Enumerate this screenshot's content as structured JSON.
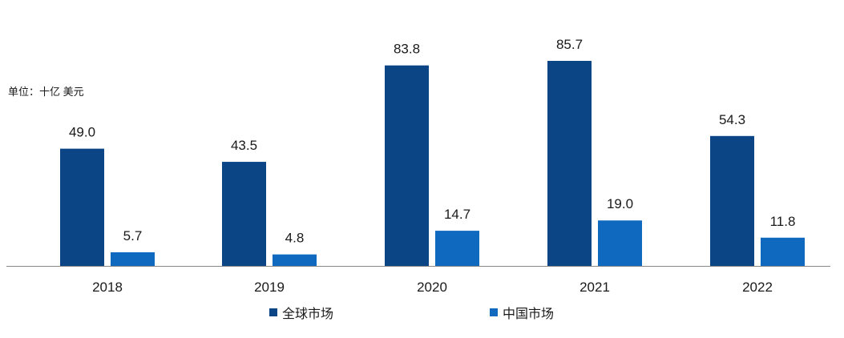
{
  "unit_label": "单位：十亿 美元",
  "chart_data": {
    "type": "bar",
    "title": "",
    "xlabel": "",
    "ylabel": "单位：十亿 美元",
    "categories": [
      "2018",
      "2019",
      "2020",
      "2021",
      "2022"
    ],
    "series": [
      {
        "name": "全球市场",
        "color": "#0b4585",
        "values": [
          49.0,
          43.5,
          83.8,
          85.7,
          54.3
        ]
      },
      {
        "name": "中国市场",
        "color": "#0e69bf",
        "values": [
          5.7,
          4.8,
          14.7,
          19.0,
          11.8
        ]
      }
    ],
    "ylim": [
      0,
      90
    ],
    "grid": false,
    "legend": "bottom-center",
    "axis_color": "#888888"
  }
}
